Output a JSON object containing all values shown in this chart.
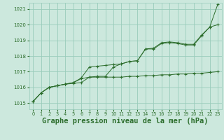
{
  "background_color": "#cce8dd",
  "grid_color": "#99ccbb",
  "line_color": "#2d6e2d",
  "marker": "+",
  "xlabel": "Graphe pression niveau de la mer (hPa)",
  "xlabel_fontsize": 7.5,
  "xlim": [
    -0.5,
    23.5
  ],
  "ylim": [
    1014.6,
    1021.4
  ],
  "yticks": [
    1015,
    1016,
    1017,
    1018,
    1019,
    1020,
    1021
  ],
  "xticks": [
    0,
    1,
    2,
    3,
    4,
    5,
    6,
    7,
    8,
    9,
    10,
    11,
    12,
    13,
    14,
    15,
    16,
    17,
    18,
    19,
    20,
    21,
    22,
    23
  ],
  "series1": [
    1015.1,
    1015.65,
    1016.0,
    1016.1,
    1016.2,
    1016.25,
    1016.3,
    1016.65,
    1016.65,
    1016.65,
    1016.65,
    1016.65,
    1016.7,
    1016.7,
    1016.75,
    1016.75,
    1016.8,
    1016.8,
    1016.85,
    1016.85,
    1016.9,
    1016.9,
    1016.95,
    1017.0
  ],
  "series2": [
    1015.1,
    1015.65,
    1016.0,
    1016.1,
    1016.2,
    1016.3,
    1016.6,
    1017.3,
    1017.35,
    1017.4,
    1017.45,
    1017.5,
    1017.65,
    1017.7,
    1018.45,
    1018.5,
    1018.85,
    1018.9,
    1018.85,
    1018.75,
    1018.75,
    1019.35,
    1019.85,
    1021.3
  ],
  "series3": [
    1015.1,
    1015.65,
    1016.0,
    1016.1,
    1016.2,
    1016.3,
    1016.55,
    1016.65,
    1016.7,
    1016.7,
    1017.3,
    1017.5,
    1017.65,
    1017.7,
    1018.45,
    1018.45,
    1018.8,
    1018.85,
    1018.8,
    1018.7,
    1018.7,
    1019.3,
    1019.85,
    1020.0
  ]
}
